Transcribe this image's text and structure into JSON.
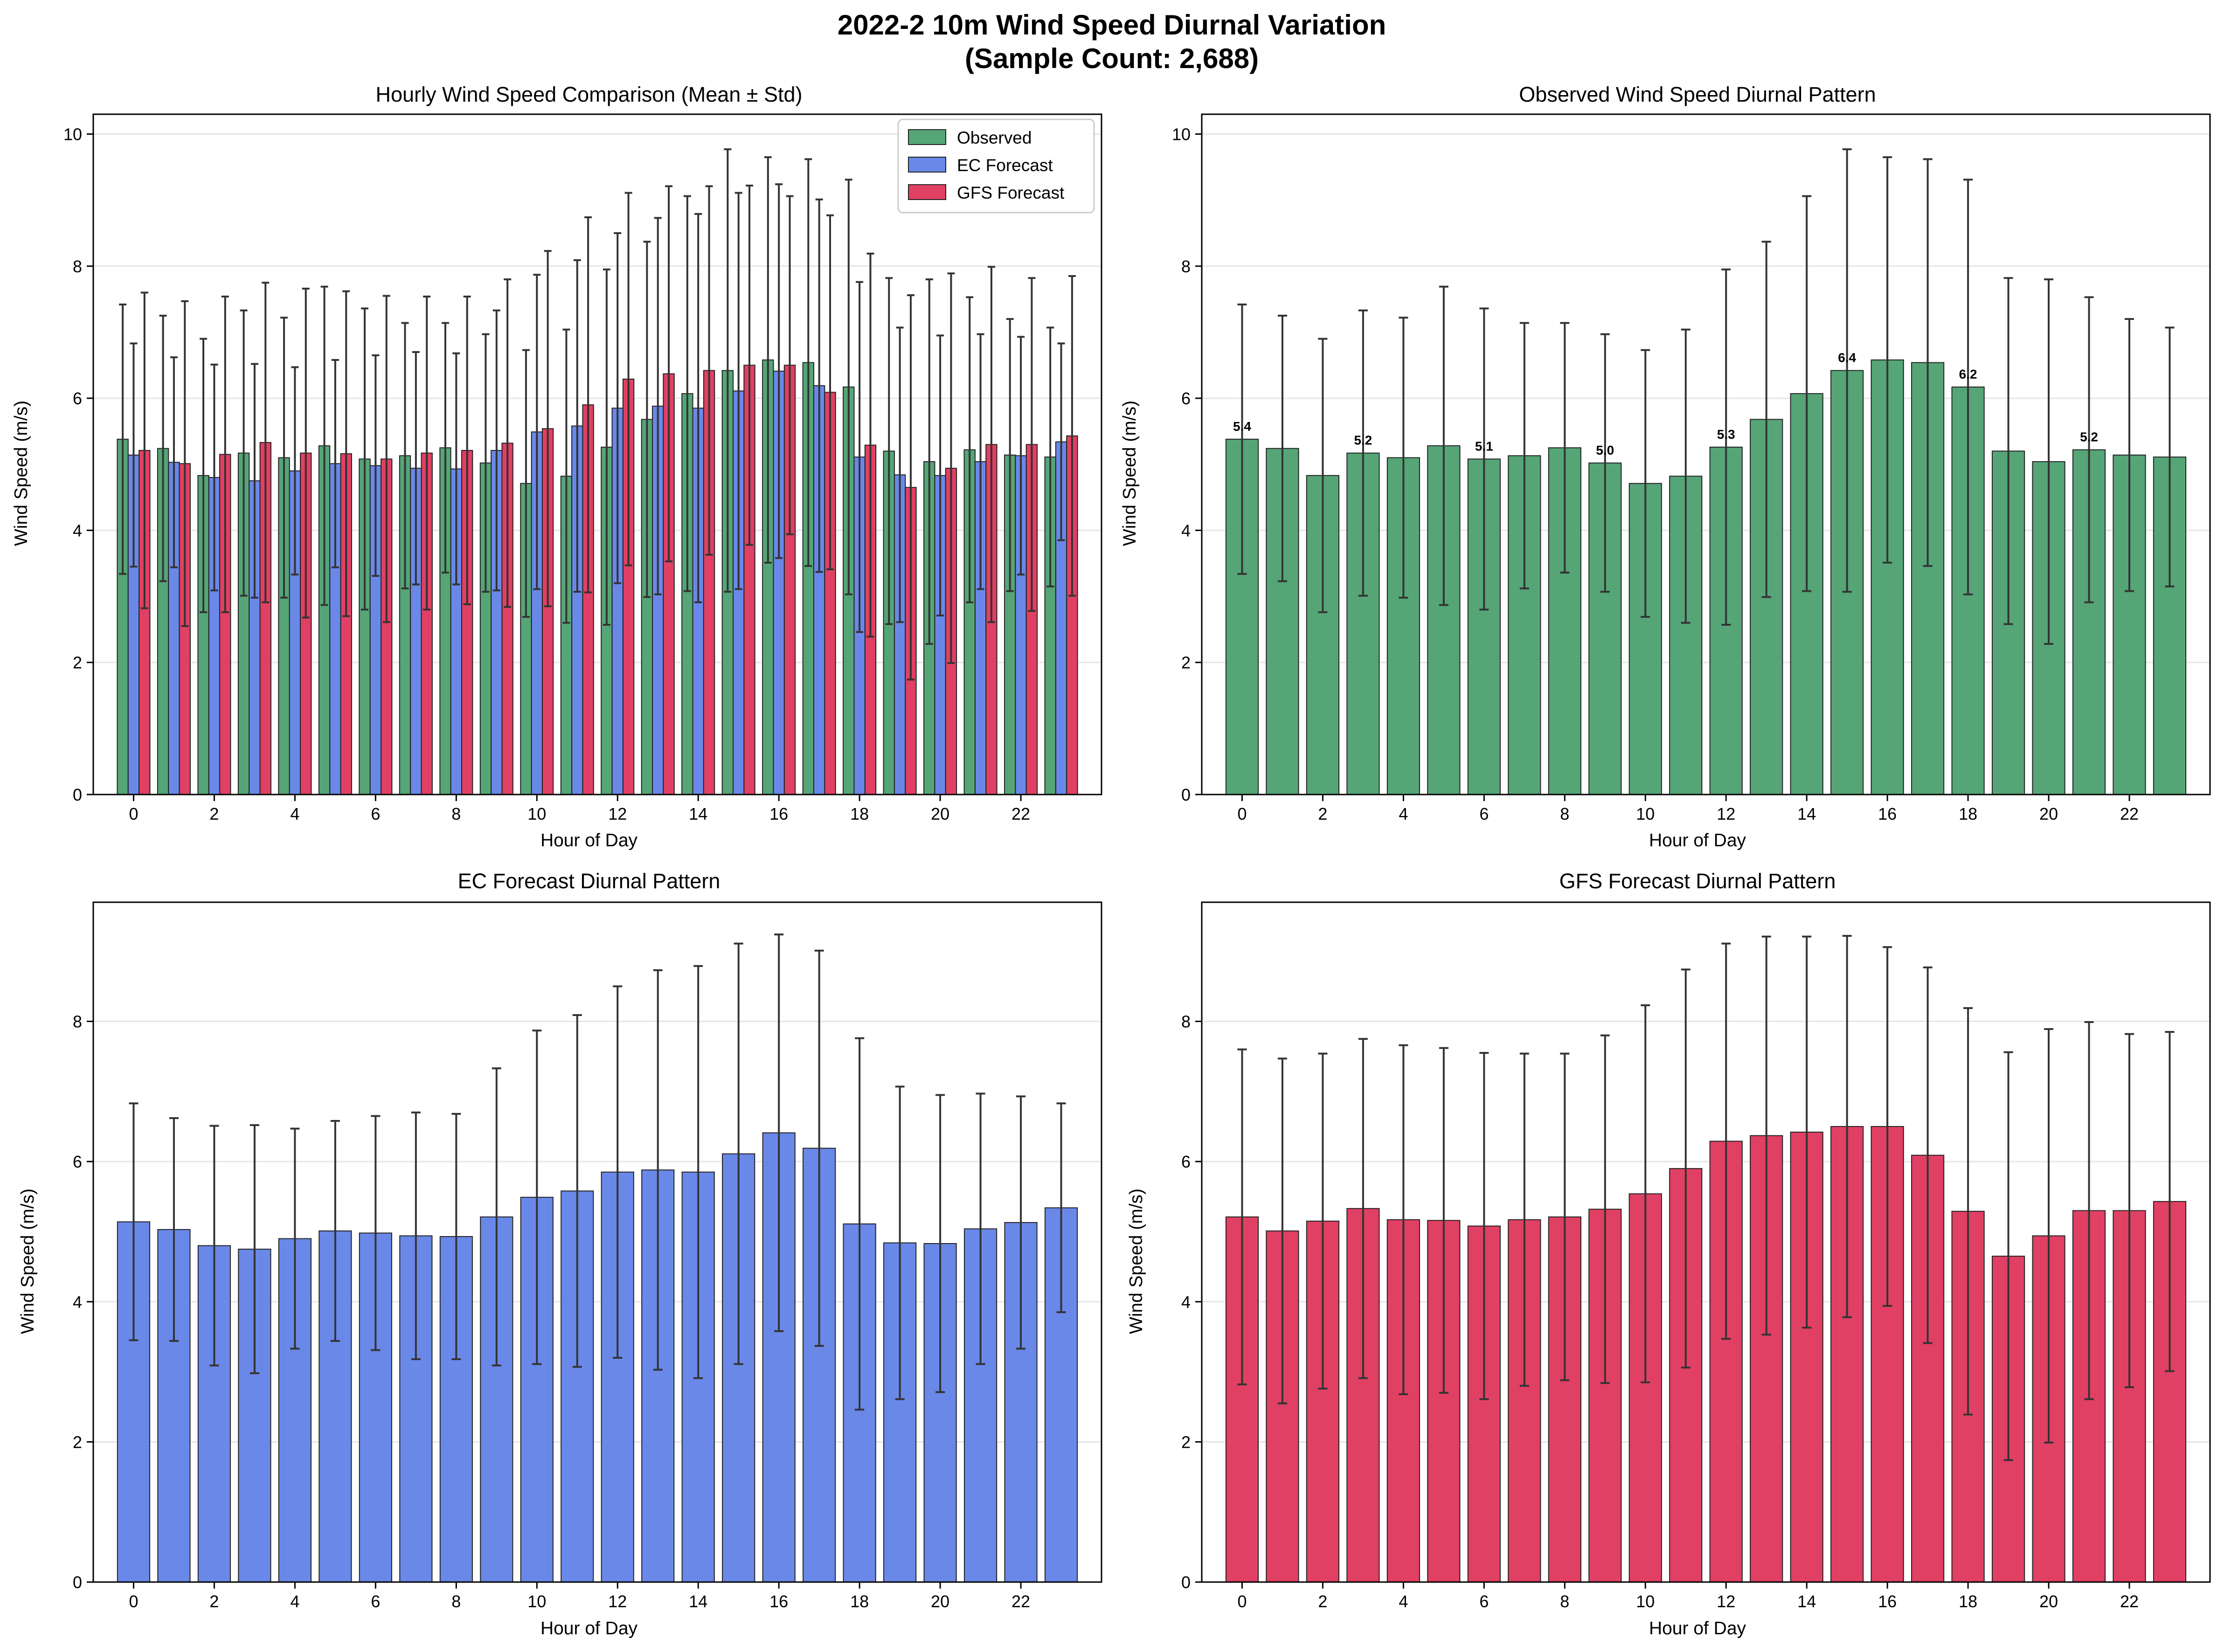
{
  "figure": {
    "title_line1": "2022-2 10m Wind Speed Diurnal Variation",
    "title_line2": "(Sample Count: 2,688)"
  },
  "colors": {
    "observed": "#55a577",
    "ec": "#6a88e8",
    "gfs": "#e04063",
    "error_bar": "#333333",
    "grid": "#e6e6e6"
  },
  "chart_data": [
    {
      "type": "bar",
      "title": "Hourly Wind Speed Comparison (Mean ± Std)",
      "xlabel": "Hour of Day",
      "ylabel": "Wind Speed (m/s)",
      "ylim": [
        0,
        10.3
      ],
      "yticks": [
        0,
        2,
        4,
        6,
        8,
        10
      ],
      "xticks": [
        0,
        2,
        4,
        6,
        8,
        10,
        12,
        14,
        16,
        18,
        20,
        22
      ],
      "categories": [
        0,
        1,
        2,
        3,
        4,
        5,
        6,
        7,
        8,
        9,
        10,
        11,
        12,
        13,
        14,
        15,
        16,
        17,
        18,
        19,
        20,
        21,
        22,
        23
      ],
      "grid": "y",
      "legend": "top-right",
      "series": [
        {
          "name": "Observed",
          "color_key": "observed",
          "values": [
            5.38,
            5.24,
            4.83,
            5.17,
            5.1,
            5.28,
            5.08,
            5.13,
            5.25,
            5.02,
            4.71,
            4.82,
            5.26,
            5.68,
            6.07,
            6.42,
            6.58,
            6.54,
            6.17,
            5.2,
            5.04,
            5.22,
            5.14,
            5.11
          ],
          "std": [
            2.04,
            2.01,
            2.07,
            2.16,
            2.12,
            2.41,
            2.28,
            2.01,
            1.89,
            1.95,
            2.02,
            2.22,
            2.69,
            2.69,
            2.99,
            3.35,
            3.07,
            3.08,
            3.14,
            2.62,
            2.76,
            2.31,
            2.06,
            1.96
          ]
        },
        {
          "name": "EC Forecast",
          "color_key": "ec",
          "values": [
            5.14,
            5.03,
            4.8,
            4.75,
            4.9,
            5.01,
            4.98,
            4.94,
            4.93,
            5.21,
            5.49,
            5.58,
            5.85,
            5.88,
            5.85,
            6.11,
            6.41,
            6.19,
            5.11,
            4.84,
            4.83,
            5.04,
            5.13,
            5.34
          ],
          "std": [
            1.69,
            1.59,
            1.71,
            1.77,
            1.57,
            1.57,
            1.67,
            1.76,
            1.75,
            2.12,
            2.38,
            2.51,
            2.65,
            2.85,
            2.94,
            3.0,
            2.83,
            2.82,
            2.65,
            2.23,
            2.12,
            1.93,
            1.8,
            1.49
          ]
        },
        {
          "name": "GFS Forecast",
          "color_key": "gfs",
          "values": [
            5.21,
            5.01,
            5.15,
            5.33,
            5.17,
            5.16,
            5.08,
            5.17,
            5.21,
            5.32,
            5.54,
            5.9,
            6.29,
            6.37,
            6.42,
            6.5,
            6.5,
            6.09,
            5.29,
            4.65,
            4.94,
            5.3,
            5.3,
            5.43
          ],
          "std": [
            2.39,
            2.46,
            2.39,
            2.42,
            2.49,
            2.46,
            2.47,
            2.37,
            2.33,
            2.48,
            2.69,
            2.84,
            2.82,
            2.84,
            2.79,
            2.72,
            2.56,
            2.68,
            2.9,
            2.91,
            2.95,
            2.69,
            2.52,
            2.42
          ]
        }
      ]
    },
    {
      "type": "bar",
      "title": "Observed Wind Speed Diurnal Pattern",
      "xlabel": "Hour of Day",
      "ylabel": "Wind Speed (m/s)",
      "ylim": [
        0,
        10.3
      ],
      "yticks": [
        0,
        2,
        4,
        6,
        8,
        10
      ],
      "xticks": [
        0,
        2,
        4,
        6,
        8,
        10,
        12,
        14,
        16,
        18,
        20,
        22
      ],
      "categories": [
        0,
        1,
        2,
        3,
        4,
        5,
        6,
        7,
        8,
        9,
        10,
        11,
        12,
        13,
        14,
        15,
        16,
        17,
        18,
        19,
        20,
        21,
        22,
        23
      ],
      "grid": "y",
      "color_key": "observed",
      "values": [
        5.38,
        5.24,
        4.83,
        5.17,
        5.1,
        5.28,
        5.08,
        5.13,
        5.25,
        5.02,
        4.71,
        4.82,
        5.26,
        5.68,
        6.07,
        6.42,
        6.58,
        6.54,
        6.17,
        5.2,
        5.04,
        5.22,
        5.14,
        5.11
      ],
      "std": [
        2.04,
        2.01,
        2.07,
        2.16,
        2.12,
        2.41,
        2.28,
        2.01,
        1.89,
        1.95,
        2.02,
        2.22,
        2.69,
        2.69,
        2.99,
        3.35,
        3.07,
        3.08,
        3.14,
        2.62,
        2.76,
        2.31,
        2.06,
        1.96
      ],
      "data_labels": [
        {
          "hour": 0,
          "text": "5.4"
        },
        {
          "hour": 3,
          "text": "5.2"
        },
        {
          "hour": 6,
          "text": "5.1"
        },
        {
          "hour": 9,
          "text": "5.0"
        },
        {
          "hour": 12,
          "text": "5.3"
        },
        {
          "hour": 15,
          "text": "6.4"
        },
        {
          "hour": 18,
          "text": "6.2"
        },
        {
          "hour": 21,
          "text": "5.2"
        }
      ]
    },
    {
      "type": "bar",
      "title": "EC Forecast Diurnal Pattern",
      "xlabel": "Hour of Day",
      "ylabel": "Wind Speed (m/s)",
      "ylim": [
        0,
        9.7
      ],
      "yticks": [
        0,
        2,
        4,
        6,
        8
      ],
      "xticks": [
        0,
        2,
        4,
        6,
        8,
        10,
        12,
        14,
        16,
        18,
        20,
        22
      ],
      "categories": [
        0,
        1,
        2,
        3,
        4,
        5,
        6,
        7,
        8,
        9,
        10,
        11,
        12,
        13,
        14,
        15,
        16,
        17,
        18,
        19,
        20,
        21,
        22,
        23
      ],
      "grid": "y",
      "color_key": "ec",
      "values": [
        5.14,
        5.03,
        4.8,
        4.75,
        4.9,
        5.01,
        4.98,
        4.94,
        4.93,
        5.21,
        5.49,
        5.58,
        5.85,
        5.88,
        5.85,
        6.11,
        6.41,
        6.19,
        5.11,
        4.84,
        4.83,
        5.04,
        5.13,
        5.34
      ],
      "std": [
        1.69,
        1.59,
        1.71,
        1.77,
        1.57,
        1.57,
        1.67,
        1.76,
        1.75,
        2.12,
        2.38,
        2.51,
        2.65,
        2.85,
        2.94,
        3.0,
        2.83,
        2.82,
        2.65,
        2.23,
        2.12,
        1.93,
        1.8,
        1.49
      ],
      "data_labels": []
    },
    {
      "type": "bar",
      "title": "GFS Forecast Diurnal Pattern",
      "xlabel": "Hour of Day",
      "ylabel": "Wind Speed (m/s)",
      "ylim": [
        0,
        9.7
      ],
      "yticks": [
        0,
        2,
        4,
        6,
        8
      ],
      "xticks": [
        0,
        2,
        4,
        6,
        8,
        10,
        12,
        14,
        16,
        18,
        20,
        22
      ],
      "categories": [
        0,
        1,
        2,
        3,
        4,
        5,
        6,
        7,
        8,
        9,
        10,
        11,
        12,
        13,
        14,
        15,
        16,
        17,
        18,
        19,
        20,
        21,
        22,
        23
      ],
      "grid": "y",
      "color_key": "gfs",
      "values": [
        5.21,
        5.01,
        5.15,
        5.33,
        5.17,
        5.16,
        5.08,
        5.17,
        5.21,
        5.32,
        5.54,
        5.9,
        6.29,
        6.37,
        6.42,
        6.5,
        6.5,
        6.09,
        5.29,
        4.65,
        4.94,
        5.3,
        5.3,
        5.43
      ],
      "std": [
        2.39,
        2.46,
        2.39,
        2.42,
        2.49,
        2.46,
        2.47,
        2.37,
        2.33,
        2.48,
        2.69,
        2.84,
        2.82,
        2.84,
        2.79,
        2.72,
        2.56,
        2.68,
        2.9,
        2.91,
        2.95,
        2.69,
        2.52,
        2.42
      ],
      "data_labels": []
    }
  ]
}
